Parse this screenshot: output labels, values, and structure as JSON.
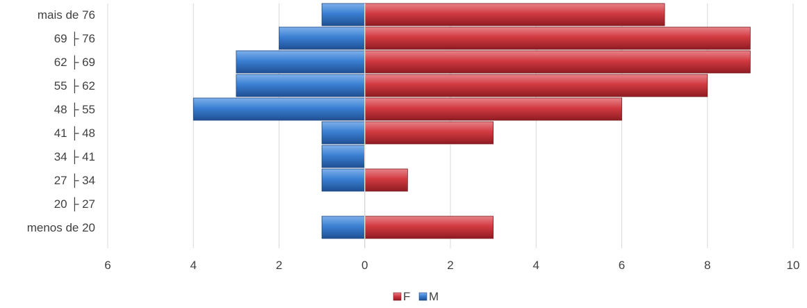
{
  "chart_data": {
    "type": "bar",
    "orientation": "horizontal",
    "categories": [
      "mais de 76",
      "69 ├ 76",
      "62 ├ 69",
      "55 ├ 62",
      "48 ├ 55",
      "41 ├ 48",
      "34 ├ 41",
      "27 ├ 34",
      "20 ├ 27",
      "menos de 20"
    ],
    "series": [
      {
        "name": "F",
        "values": [
          7,
          9,
          9,
          8,
          6,
          3,
          0,
          1,
          0,
          3
        ],
        "direction": "right",
        "color": "#c0272d"
      },
      {
        "name": "M",
        "values": [
          1,
          2,
          3,
          3,
          4,
          1,
          1,
          1,
          0,
          1
        ],
        "direction": "left",
        "color": "#2e6fc0"
      }
    ],
    "xlim": [
      -6,
      10
    ],
    "xticks": [
      -6,
      -4,
      -2,
      0,
      2,
      4,
      6,
      8,
      10
    ],
    "xtick_labels": [
      "6",
      "4",
      "2",
      "0",
      "2",
      "4",
      "6",
      "8",
      "10"
    ],
    "grid": "vertical",
    "legend": {
      "placement": "bottom",
      "entries": [
        "F",
        "M"
      ]
    },
    "title": "",
    "xlabel": "",
    "ylabel": ""
  }
}
